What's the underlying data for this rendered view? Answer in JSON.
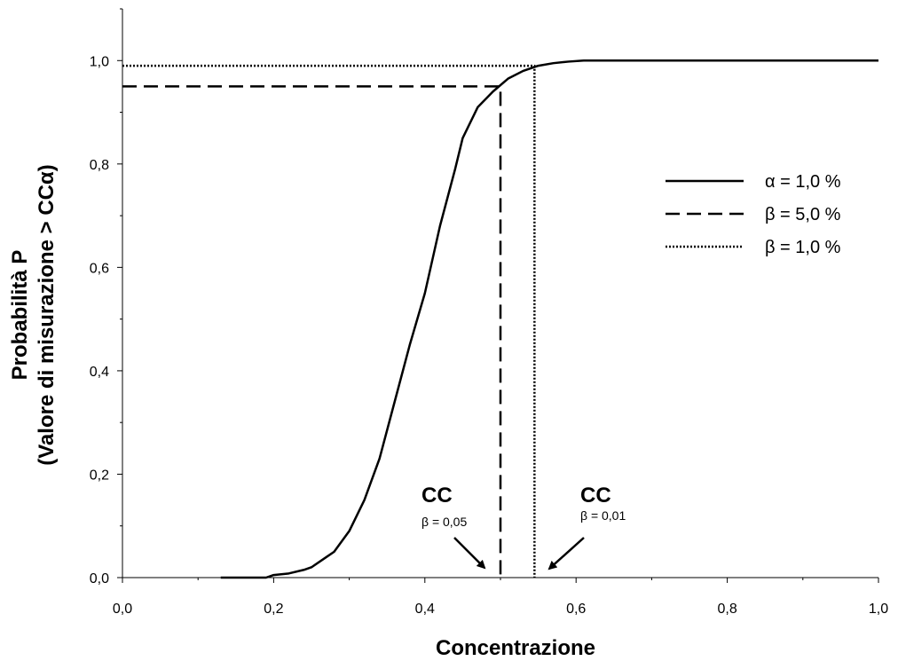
{
  "chart_data": {
    "type": "line",
    "xlabel": "Concentrazione",
    "ylabel_line1": "Probabilità P",
    "ylabel_line2": "(Valore di misurazione > CCα)",
    "xlim": [
      0,
      1
    ],
    "ylim": [
      0,
      1.1
    ],
    "x_tick_labels": [
      "0,0",
      "0,2",
      "0,4",
      "0,6",
      "0,8",
      "1,0"
    ],
    "y_tick_labels": [
      "0,0",
      "0,2",
      "0,4",
      "0,6",
      "0,8",
      "1,0"
    ],
    "grid": false,
    "legend_position": "right",
    "series": [
      {
        "name": "α = 1,0 %",
        "style": "solid",
        "x": [
          0.13,
          0.19,
          0.2,
          0.22,
          0.24,
          0.25,
          0.27,
          0.28,
          0.3,
          0.32,
          0.34,
          0.36,
          0.38,
          0.4,
          0.42,
          0.44,
          0.45,
          0.47,
          0.49,
          0.51,
          0.53,
          0.55,
          0.57,
          0.59,
          0.61,
          0.7,
          0.8,
          0.9,
          1.0
        ],
        "y": [
          0.0,
          0.0,
          0.005,
          0.008,
          0.015,
          0.02,
          0.04,
          0.05,
          0.09,
          0.15,
          0.23,
          0.34,
          0.45,
          0.55,
          0.68,
          0.79,
          0.85,
          0.91,
          0.94,
          0.965,
          0.98,
          0.99,
          0.995,
          0.998,
          1.0,
          1.0,
          1.0,
          1.0,
          1.0
        ]
      },
      {
        "name": "β = 5,0 %",
        "style": "dashed",
        "x": [
          0.0,
          0.5,
          0.5
        ],
        "y": [
          0.95,
          0.95,
          0.0
        ]
      },
      {
        "name": "β = 1,0 %",
        "style": "dotted",
        "x": [
          0.0,
          0.545,
          0.545
        ],
        "y": [
          0.99,
          0.99,
          0.0
        ]
      }
    ],
    "annotations": [
      {
        "main": "CC",
        "sub": "β = 0,05",
        "x": 0.5
      },
      {
        "main": "CC",
        "sub": "β = 0,01",
        "x": 0.545
      }
    ]
  }
}
